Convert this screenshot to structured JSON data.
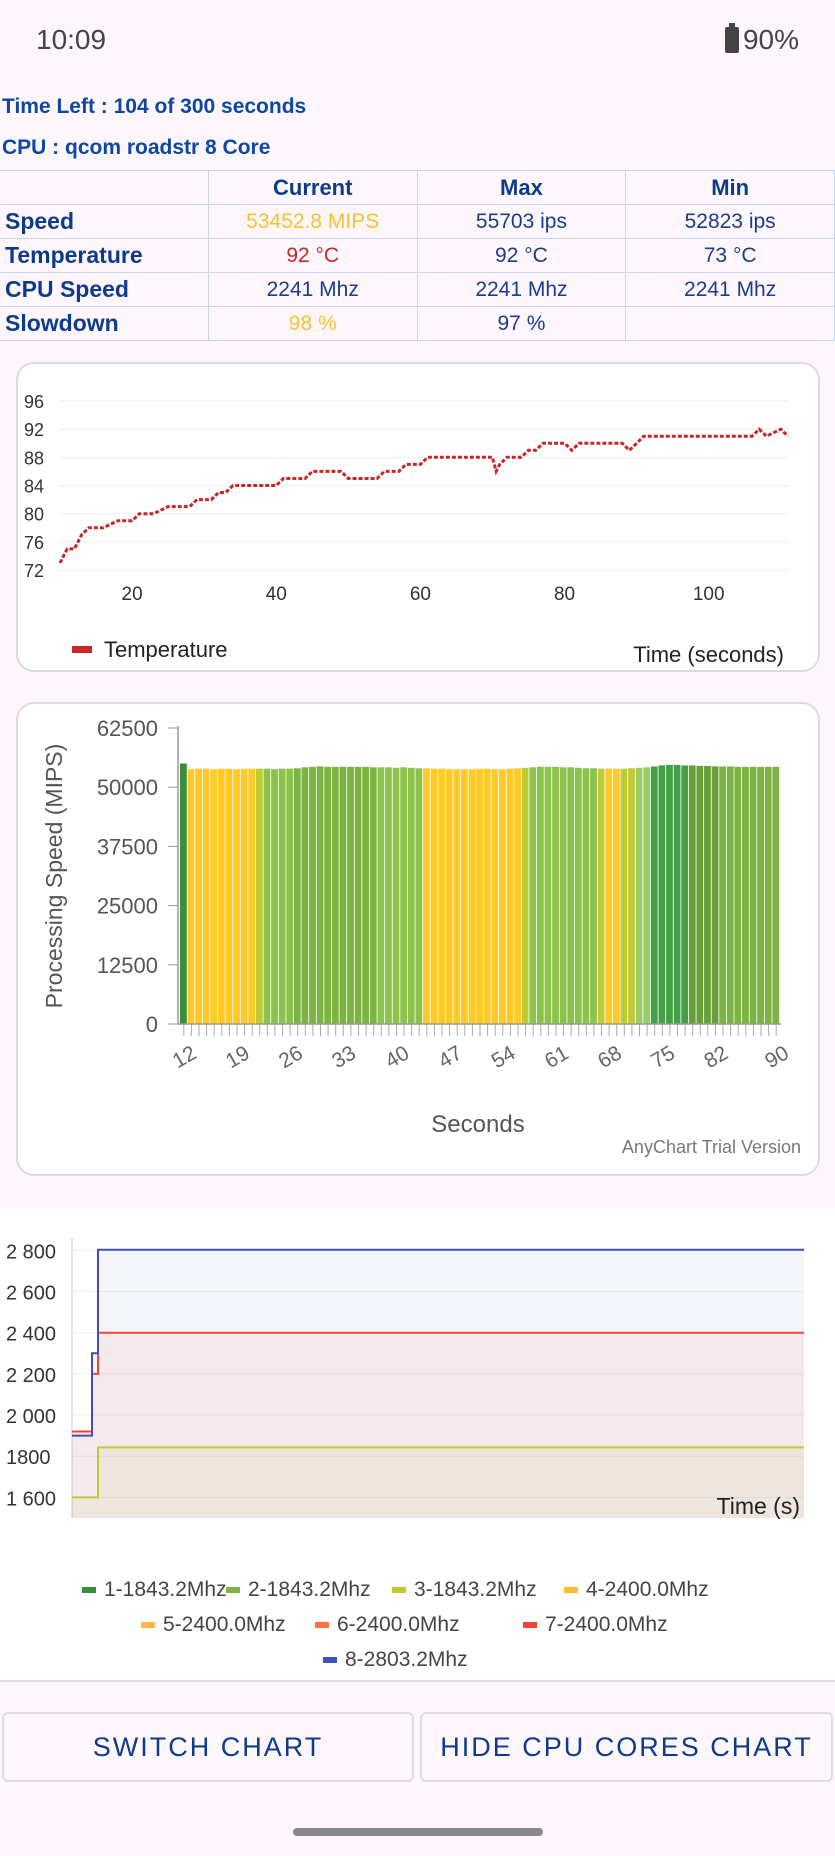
{
  "status_bar": {
    "time": "10:09",
    "battery": "90%"
  },
  "info": {
    "time_left": "Time Left : 104 of 300 seconds",
    "cpu": "CPU : qcom roadstr 8 Core"
  },
  "table": {
    "headers": [
      "Current",
      "Max",
      "Min"
    ],
    "rows": [
      {
        "label": "Speed",
        "current": "53452.8 MIPS",
        "max": "55703 ips",
        "min": "52823 ips"
      },
      {
        "label": "Temperature",
        "current": "92 °C",
        "max": "92 °C",
        "min": "73 °C"
      },
      {
        "label": "CPU Speed",
        "current": "2241 Mhz",
        "max": "2241 Mhz",
        "min": "2241 Mhz"
      },
      {
        "label": "Slowdown",
        "current": "98 %",
        "max": "97 %",
        "min": ""
      }
    ]
  },
  "colors": {
    "temperature_line": "#c62828",
    "accent": "#0d3b8a",
    "yellow": "#f6c22e"
  },
  "temp_chart": {
    "type": "line",
    "legend": "Temperature",
    "xlabel": "Time (seconds)",
    "y_ticks": [
      "96",
      "92",
      "88",
      "84",
      "80",
      "76",
      "72"
    ],
    "x_ticks": [
      "20",
      "40",
      "60",
      "80",
      "100"
    ],
    "ylim": [
      72,
      96
    ],
    "xlim": [
      10,
      111
    ],
    "points": [
      [
        10,
        73
      ],
      [
        11,
        75
      ],
      [
        12,
        75
      ],
      [
        13,
        77
      ],
      [
        14,
        78
      ],
      [
        16,
        78
      ],
      [
        18,
        79
      ],
      [
        20,
        79
      ],
      [
        21,
        80
      ],
      [
        23,
        80
      ],
      [
        25,
        81
      ],
      [
        28,
        81
      ],
      [
        29,
        82
      ],
      [
        31,
        82
      ],
      [
        32,
        83
      ],
      [
        33,
        83
      ],
      [
        34,
        84
      ],
      [
        40,
        84
      ],
      [
        41,
        85
      ],
      [
        44,
        85
      ],
      [
        45,
        86
      ],
      [
        49,
        86
      ],
      [
        50,
        85
      ],
      [
        54,
        85
      ],
      [
        55,
        86
      ],
      [
        57,
        86
      ],
      [
        58,
        87
      ],
      [
        60,
        87
      ],
      [
        61,
        88
      ],
      [
        70,
        88
      ],
      [
        70.5,
        86
      ],
      [
        71,
        87
      ],
      [
        72,
        88
      ],
      [
        74,
        88
      ],
      [
        75,
        89
      ],
      [
        76,
        89
      ],
      [
        77,
        90
      ],
      [
        80,
        90
      ],
      [
        81,
        89
      ],
      [
        82,
        90
      ],
      [
        88,
        90
      ],
      [
        89,
        89
      ],
      [
        90,
        90
      ],
      [
        91,
        91
      ],
      [
        106,
        91
      ],
      [
        107,
        92
      ],
      [
        108,
        91
      ],
      [
        110,
        92
      ],
      [
        111,
        91
      ]
    ]
  },
  "speed_chart": {
    "type": "bar",
    "ylabel": "Processing Speed (MIPS)",
    "xlabel": "Seconds",
    "watermark": "AnyChart Trial Version",
    "y_ticks": [
      "62500",
      "50000",
      "37500",
      "25000",
      "12500",
      "0"
    ],
    "ylim": [
      0,
      62500
    ],
    "x_ticks": [
      "12",
      "19",
      "26",
      "33",
      "40",
      "47",
      "54",
      "61",
      "68",
      "75",
      "82",
      "90"
    ],
    "x_start": 12,
    "x_end": 90,
    "values": [
      55000,
      53800,
      53900,
      53900,
      53800,
      53900,
      53900,
      53800,
      53900,
      53900,
      53900,
      53900,
      53800,
      53900,
      53900,
      54000,
      54200,
      54300,
      54400,
      54300,
      54300,
      54300,
      54300,
      54300,
      54300,
      54200,
      54200,
      54200,
      54100,
      54200,
      54100,
      54000,
      54000,
      53900,
      53900,
      53800,
      53800,
      53800,
      53800,
      53900,
      53900,
      53800,
      53800,
      53900,
      54000,
      54100,
      54200,
      54300,
      54300,
      54300,
      54200,
      54200,
      54100,
      54000,
      54000,
      53900,
      53900,
      53900,
      53900,
      54000,
      54100,
      54200,
      54400,
      54600,
      54700,
      54700,
      54600,
      54600,
      54500,
      54500,
      54400,
      54400,
      54400,
      54300,
      54300,
      54300,
      54300,
      54300,
      54300
    ],
    "bar_colors": [
      "#388e3c",
      "#ffca28",
      "#ffca28",
      "#ffca28",
      "#ffca28",
      "#ffca28",
      "#ffca28",
      "#ffca28",
      "#ffca28",
      "#ffca28",
      "#c0ca33",
      "#8bc34a",
      "#8bc34a",
      "#8bc34a",
      "#8bc34a",
      "#7cb342",
      "#7cb342",
      "#7cb342",
      "#7cb342",
      "#7cb342",
      "#7cb342",
      "#7cb342",
      "#7cb342",
      "#7cb342",
      "#7cb342",
      "#7cb342",
      "#8bc34a",
      "#8bc34a",
      "#8bc34a",
      "#8bc34a",
      "#8bc34a",
      "#8bc34a",
      "#ffca28",
      "#ffca28",
      "#ffca28",
      "#ffca28",
      "#ffca28",
      "#ffca28",
      "#ffca28",
      "#ffca28",
      "#ffca28",
      "#ffca28",
      "#ffca28",
      "#ffca28",
      "#ffca28",
      "#c0ca33",
      "#8bc34a",
      "#8bc34a",
      "#8bc34a",
      "#8bc34a",
      "#8bc34a",
      "#8bc34a",
      "#8bc34a",
      "#8bc34a",
      "#8bc34a",
      "#c0ca33",
      "#ffca28",
      "#ffca28",
      "#c0ca33",
      "#c0ca33",
      "#9ccc65",
      "#9ccc65",
      "#43a047",
      "#43a047",
      "#43a047",
      "#43a047",
      "#43a047",
      "#689f38",
      "#689f38",
      "#689f38",
      "#689f38",
      "#7cb342",
      "#7cb342",
      "#7cb342",
      "#7cb342",
      "#7cb342",
      "#7cb342",
      "#7cb342",
      "#7cb342"
    ]
  },
  "cores_chart": {
    "type": "line",
    "xlabel": "Time (s)",
    "y_ticks": [
      "2 800",
      "2 600",
      "2 400",
      "2 200",
      "2 000",
      "1800",
      "1 600"
    ],
    "ylim": [
      1500,
      2860
    ],
    "series": [
      {
        "name": "1-1843.2Mhz",
        "color": "#388e3c",
        "legend": "1-1843.2Mhz"
      },
      {
        "name": "2-1843.2Mhz",
        "color": "#7cb342",
        "legend": "2-1843.2Mhz"
      },
      {
        "name": "3-1843.2Mhz",
        "color": "#c0ca33",
        "legend": "3-1843.2Mhz",
        "levels": [
          1600,
          1843
        ]
      },
      {
        "name": "4-2400.0Mhz",
        "color": "#fbc02d",
        "legend": "4-2400.0Mhz"
      },
      {
        "name": "5-2400.0Mhz",
        "color": "#ffb74d",
        "legend": "5-2400.0Mhz"
      },
      {
        "name": "6-2400.0Mhz",
        "color": "#ff7043",
        "legend": "6-2400.0Mhz"
      },
      {
        "name": "7-2400.0Mhz",
        "color": "#f44336",
        "legend": "7-2400.0Mhz",
        "levels": [
          1920,
          2200,
          2400
        ]
      },
      {
        "name": "8-2803.2Mhz",
        "color": "#3f51b5",
        "legend": "8-2803.2Mhz",
        "levels": [
          1900,
          2300,
          2803
        ]
      }
    ]
  },
  "buttons": {
    "switch_chart": "SWITCH CHART",
    "hide_cores": "HIDE CPU CORES CHART"
  }
}
